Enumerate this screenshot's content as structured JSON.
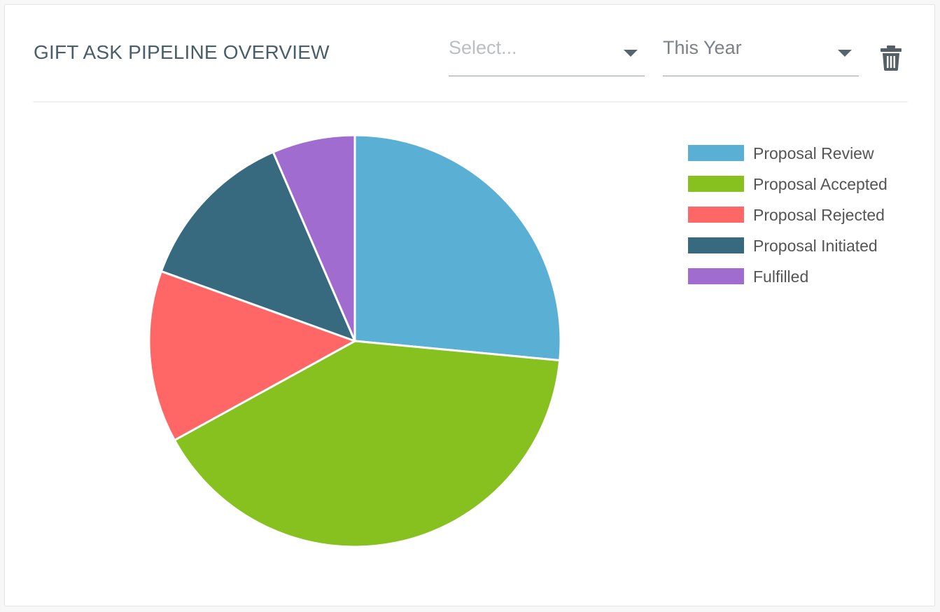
{
  "header": {
    "title": "GIFT ASK PIPELINE OVERVIEW",
    "filter_select": {
      "placeholder": "Select..."
    },
    "period_select": {
      "value": "This Year"
    },
    "delete_icon": "trash-icon"
  },
  "chart_data": {
    "type": "pie",
    "legend_position": "right",
    "slices": [
      {
        "label": "Proposal Review",
        "value": 26.5,
        "color": "#5aafd4"
      },
      {
        "label": "Proposal Accepted",
        "value": 40.5,
        "color": "#86c120"
      },
      {
        "label": "Proposal Rejected",
        "value": 13.5,
        "color": "#ff6666"
      },
      {
        "label": "Proposal Initiated",
        "value": 13.0,
        "color": "#386a7f"
      },
      {
        "label": "Fulfilled",
        "value": 6.5,
        "color": "#a06ccf"
      }
    ]
  }
}
